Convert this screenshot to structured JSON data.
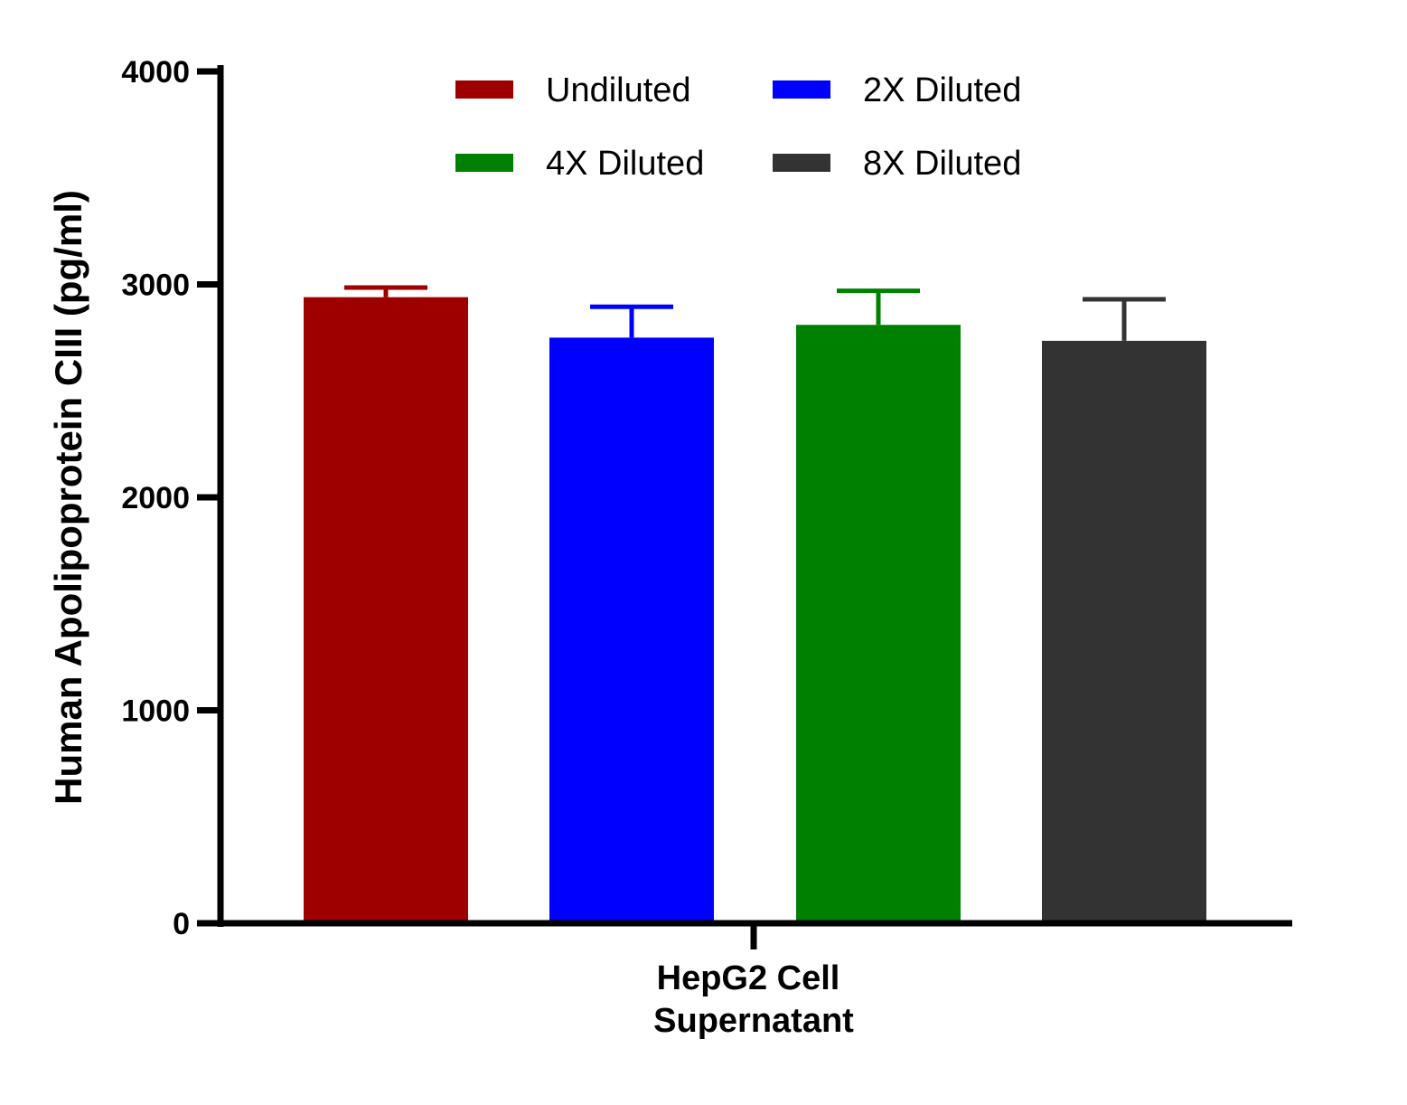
{
  "chart_data": {
    "type": "bar",
    "ylabel": "Human Apolipoprotein CIII (pg/ml)",
    "category_lines": [
      "HepG2 Cell",
      "Supernatant"
    ],
    "ylim": [
      0,
      4000
    ],
    "yticks": [
      "0",
      "1000",
      "2000",
      "3000",
      "4000"
    ],
    "legend_position": "top",
    "series": [
      {
        "name": "Undiluted",
        "value": 2940,
        "error": 45,
        "color": "#9e0000"
      },
      {
        "name": "2X Diluted",
        "value": 2750,
        "error": 145,
        "color": "#0000ff"
      },
      {
        "name": "4X Diluted",
        "value": 2810,
        "error": 160,
        "color": "#008000"
      },
      {
        "name": "8X Diluted",
        "value": 2735,
        "error": 195,
        "color": "#333333"
      }
    ]
  }
}
